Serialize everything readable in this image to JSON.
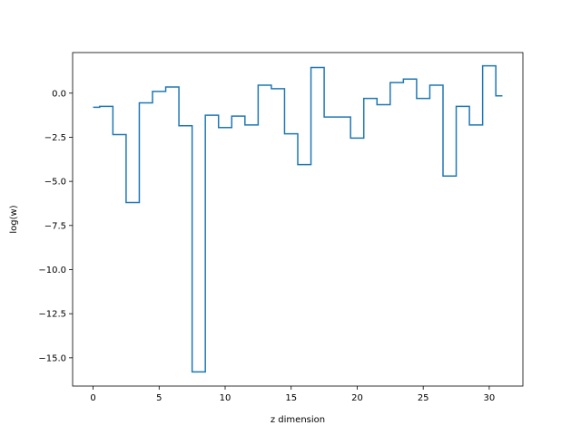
{
  "chart_data": {
    "type": "line",
    "step": "mid",
    "title": "",
    "xlabel": "z dimension",
    "ylabel": "log(w)",
    "xlim": [
      -1.55,
      32.55
    ],
    "ylim": [
      -16.6,
      2.3
    ],
    "xticks": [
      0,
      5,
      10,
      15,
      20,
      25,
      30
    ],
    "yticks": [
      0.0,
      -2.5,
      -5.0,
      -7.5,
      -10.0,
      -12.5,
      -15.0
    ],
    "xtick_labels": [
      "0",
      "5",
      "10",
      "15",
      "20",
      "25",
      "30"
    ],
    "ytick_labels": [
      "0.0",
      "−2.5",
      "−5.0",
      "−7.5",
      "−10.0",
      "−12.5",
      "−15.0"
    ],
    "grid": false,
    "line_color": "#1f77b4",
    "series": [
      {
        "x": [
          0,
          1,
          2,
          3,
          4,
          5,
          6,
          7,
          8,
          9,
          10,
          11,
          12,
          13,
          14,
          15,
          16,
          17,
          18,
          19,
          20,
          21,
          22,
          23,
          24,
          25,
          26,
          27,
          28,
          29,
          30,
          31
        ],
        "values": [
          -0.8,
          -0.75,
          -2.35,
          -6.2,
          -0.55,
          0.1,
          0.35,
          -1.85,
          -15.8,
          -1.25,
          -1.95,
          -1.3,
          -1.8,
          0.45,
          0.25,
          -2.3,
          -4.05,
          1.45,
          -1.35,
          -1.35,
          -2.55,
          -0.3,
          -0.65,
          0.6,
          0.8,
          -0.3,
          0.45,
          -4.7,
          -0.75,
          -1.8,
          1.55,
          -0.15
        ]
      }
    ]
  }
}
